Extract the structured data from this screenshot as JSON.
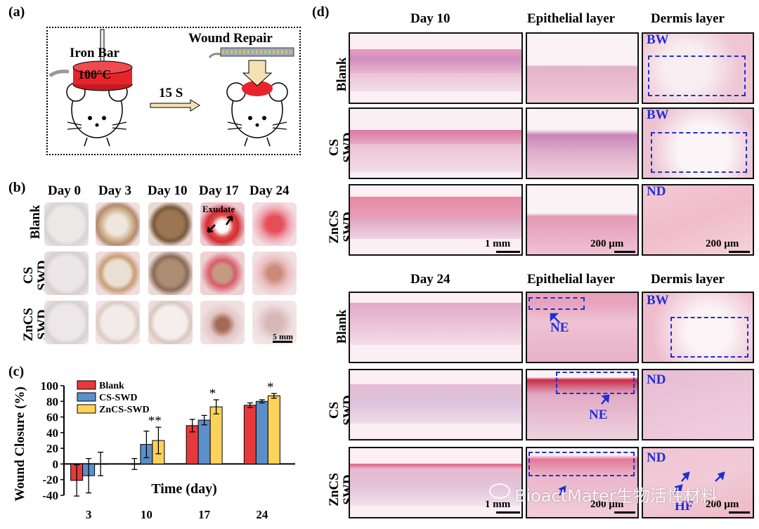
{
  "panels": {
    "a": "(a)",
    "b": "(b)",
    "c": "(c)",
    "d": "(d)"
  },
  "schematic": {
    "iron_bar": "Iron Bar",
    "temperature": "100°C",
    "duration": "15 S",
    "wound_repair": "Wound Repair"
  },
  "photos": {
    "days": [
      "Day 0",
      "Day 3",
      "Day 10",
      "Day 17",
      "Day 24"
    ],
    "rows": [
      {
        "line1": "Blank",
        "line2": ""
      },
      {
        "line1": "CS",
        "line2": "SWD"
      },
      {
        "line1": "ZnCS",
        "line2": "SWD"
      }
    ],
    "exudate": "Exudate",
    "scale": "5 mm"
  },
  "chart_data": {
    "type": "bar",
    "ylabel": "Wound Closure (%)",
    "xlabel": "Time (day)",
    "categories": [
      "3",
      "10",
      "17",
      "24"
    ],
    "ylim": [
      -40,
      100
    ],
    "yticks": [
      "100",
      "80",
      "60",
      "40",
      "20",
      "0",
      "-20",
      "-40"
    ],
    "series": [
      {
        "name": "Blank",
        "color": "#e8393a",
        "values": [
          -21,
          0,
          49,
          75
        ],
        "errors": [
          20,
          7,
          8,
          3
        ]
      },
      {
        "name": "CS-SWD",
        "color": "#5b8fcb",
        "values": [
          -15,
          25,
          56,
          80
        ],
        "errors": [
          22,
          17,
          6,
          2
        ]
      },
      {
        "name": "ZnCS-SWD",
        "color": "#fcd25a",
        "values": [
          0,
          30,
          73,
          87
        ],
        "errors": [
          15,
          17,
          9,
          3
        ]
      }
    ],
    "significance": [
      "",
      "**",
      "*",
      "*"
    ]
  },
  "histology": {
    "day10_title": "Day 10",
    "day24_title": "Day 24",
    "epithelial": "Epithelial layer",
    "dermis": "Dermis layer",
    "rows": [
      {
        "line1": "Blank",
        "line2": ""
      },
      {
        "line1": "CS",
        "line2": "SWD"
      },
      {
        "line1": "ZnCS",
        "line2": "SWD"
      }
    ],
    "scale_1mm": "1 mm",
    "scale_200um": "200 µm",
    "tags": {
      "bw": "BW",
      "nd": "ND",
      "ne": "NE",
      "hf": "HF"
    }
  },
  "watermark": "BioactMater生物活性材料",
  "colors": {
    "annotation": "#1f2fd6",
    "heat": "#e8242b",
    "tissue_pink": "#f2b9cc"
  }
}
